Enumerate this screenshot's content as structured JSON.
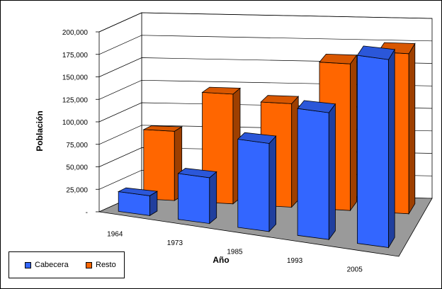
{
  "chart_data": {
    "type": "bar",
    "title": "",
    "xlabel": "Año",
    "ylabel": "Población",
    "categories": [
      "1964",
      "1973",
      "1985",
      "1993",
      "2005"
    ],
    "ylim": [
      0,
      200000
    ],
    "yticks": [
      "-",
      "25,000",
      "50,000",
      "75,000",
      "100,000",
      "125,000",
      "150,000",
      "175,000",
      "200,000"
    ],
    "grid": true,
    "legend_position": "bottom-left",
    "series": [
      {
        "name": "Cabecera",
        "color": "#3366FF",
        "values": [
          22000,
          51000,
          98000,
          141000,
          209000
        ]
      },
      {
        "name": "Resto",
        "color": "#FF6600",
        "values": [
          77000,
          122000,
          115000,
          163000,
          178000
        ]
      }
    ]
  }
}
